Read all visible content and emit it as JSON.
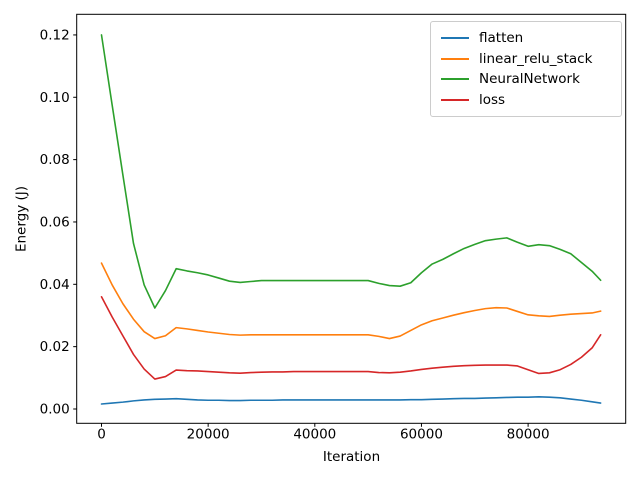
{
  "figure": {
    "background_color": "#ffffff",
    "text_color": "#000000",
    "spine_color": "#000000"
  },
  "chart_data": {
    "type": "line",
    "title": "",
    "xlabel": "Iteration",
    "ylabel": "Energy (J)",
    "grid": false,
    "xlim": [
      -4651,
      98300
    ],
    "ylim": [
      -0.00459,
      0.12662
    ],
    "xticks": [
      0,
      20000,
      40000,
      60000,
      80000
    ],
    "xtick_labels": [
      "0",
      "20000",
      "40000",
      "60000",
      "80000"
    ],
    "yticks": [
      0.0,
      0.02,
      0.04,
      0.06,
      0.08,
      0.1,
      0.12
    ],
    "ytick_labels": [
      "0.00",
      "0.02",
      "0.04",
      "0.06",
      "0.08",
      "0.10",
      "0.12"
    ],
    "legend": {
      "position": "upper right",
      "entries": [
        "flatten",
        "linear_relu_stack",
        "NeuralNetwork",
        "loss"
      ]
    },
    "x": [
      0,
      2000,
      4000,
      6000,
      8000,
      10000,
      12000,
      14000,
      16000,
      18000,
      20000,
      22000,
      24000,
      26000,
      28000,
      30000,
      32000,
      34000,
      36000,
      38000,
      40000,
      42000,
      44000,
      46000,
      48000,
      50000,
      52000,
      54000,
      56000,
      58000,
      60000,
      62000,
      64000,
      66000,
      68000,
      70000,
      72000,
      74000,
      76000,
      78000,
      80000,
      82000,
      84000,
      86000,
      88000,
      90000,
      92000,
      93600
    ],
    "series": [
      {
        "name": "flatten",
        "color": "#1f77b4",
        "values": [
          0.0016,
          0.0019,
          0.0022,
          0.0026,
          0.0029,
          0.0031,
          0.0032,
          0.0033,
          0.0031,
          0.0029,
          0.0028,
          0.0028,
          0.0027,
          0.0027,
          0.0028,
          0.0028,
          0.0028,
          0.0029,
          0.0029,
          0.0029,
          0.0029,
          0.0029,
          0.0029,
          0.0029,
          0.0029,
          0.0029,
          0.0029,
          0.0029,
          0.0029,
          0.003,
          0.003,
          0.0031,
          0.0032,
          0.0033,
          0.0034,
          0.0034,
          0.0035,
          0.0036,
          0.0037,
          0.0038,
          0.0038,
          0.0039,
          0.0038,
          0.0036,
          0.0032,
          0.0028,
          0.0023,
          0.0019
        ]
      },
      {
        "name": "linear_relu_stack",
        "color": "#ff7f0e",
        "values": [
          0.0468,
          0.0398,
          0.0338,
          0.0288,
          0.0248,
          0.0226,
          0.0235,
          0.0261,
          0.0257,
          0.0252,
          0.0247,
          0.0243,
          0.0239,
          0.0237,
          0.0238,
          0.0238,
          0.0238,
          0.0238,
          0.0238,
          0.0238,
          0.0238,
          0.0238,
          0.0238,
          0.0238,
          0.0238,
          0.0238,
          0.0233,
          0.0226,
          0.0234,
          0.0252,
          0.027,
          0.0283,
          0.0292,
          0.0301,
          0.0309,
          0.0316,
          0.0322,
          0.0325,
          0.0324,
          0.0313,
          0.0302,
          0.0299,
          0.0297,
          0.0301,
          0.0304,
          0.0306,
          0.0308,
          0.0314
        ]
      },
      {
        "name": "NeuralNetwork",
        "color": "#2ca02c",
        "values": [
          0.12,
          0.0975,
          0.0752,
          0.0531,
          0.0398,
          0.0324,
          0.038,
          0.045,
          0.0443,
          0.0437,
          0.043,
          0.042,
          0.041,
          0.0406,
          0.0409,
          0.0412,
          0.0412,
          0.0412,
          0.0412,
          0.0412,
          0.0412,
          0.0412,
          0.0412,
          0.0412,
          0.0412,
          0.0412,
          0.0403,
          0.0396,
          0.0394,
          0.0405,
          0.0437,
          0.0465,
          0.048,
          0.0498,
          0.0515,
          0.0528,
          0.054,
          0.0545,
          0.0549,
          0.0535,
          0.0522,
          0.0527,
          0.0524,
          0.0512,
          0.0498,
          0.047,
          0.0442,
          0.0413
        ]
      },
      {
        "name": "loss",
        "color": "#d62728",
        "values": [
          0.036,
          0.0295,
          0.0235,
          0.0175,
          0.0128,
          0.0096,
          0.0104,
          0.0125,
          0.0123,
          0.0122,
          0.012,
          0.0118,
          0.0116,
          0.0115,
          0.0117,
          0.0118,
          0.0119,
          0.0119,
          0.012,
          0.012,
          0.012,
          0.012,
          0.012,
          0.012,
          0.012,
          0.012,
          0.0117,
          0.0116,
          0.0118,
          0.0122,
          0.0127,
          0.0131,
          0.0134,
          0.0137,
          0.0139,
          0.014,
          0.0141,
          0.0141,
          0.0141,
          0.0138,
          0.0126,
          0.0114,
          0.0116,
          0.0126,
          0.0143,
          0.0166,
          0.0196,
          0.0238
        ]
      }
    ]
  }
}
